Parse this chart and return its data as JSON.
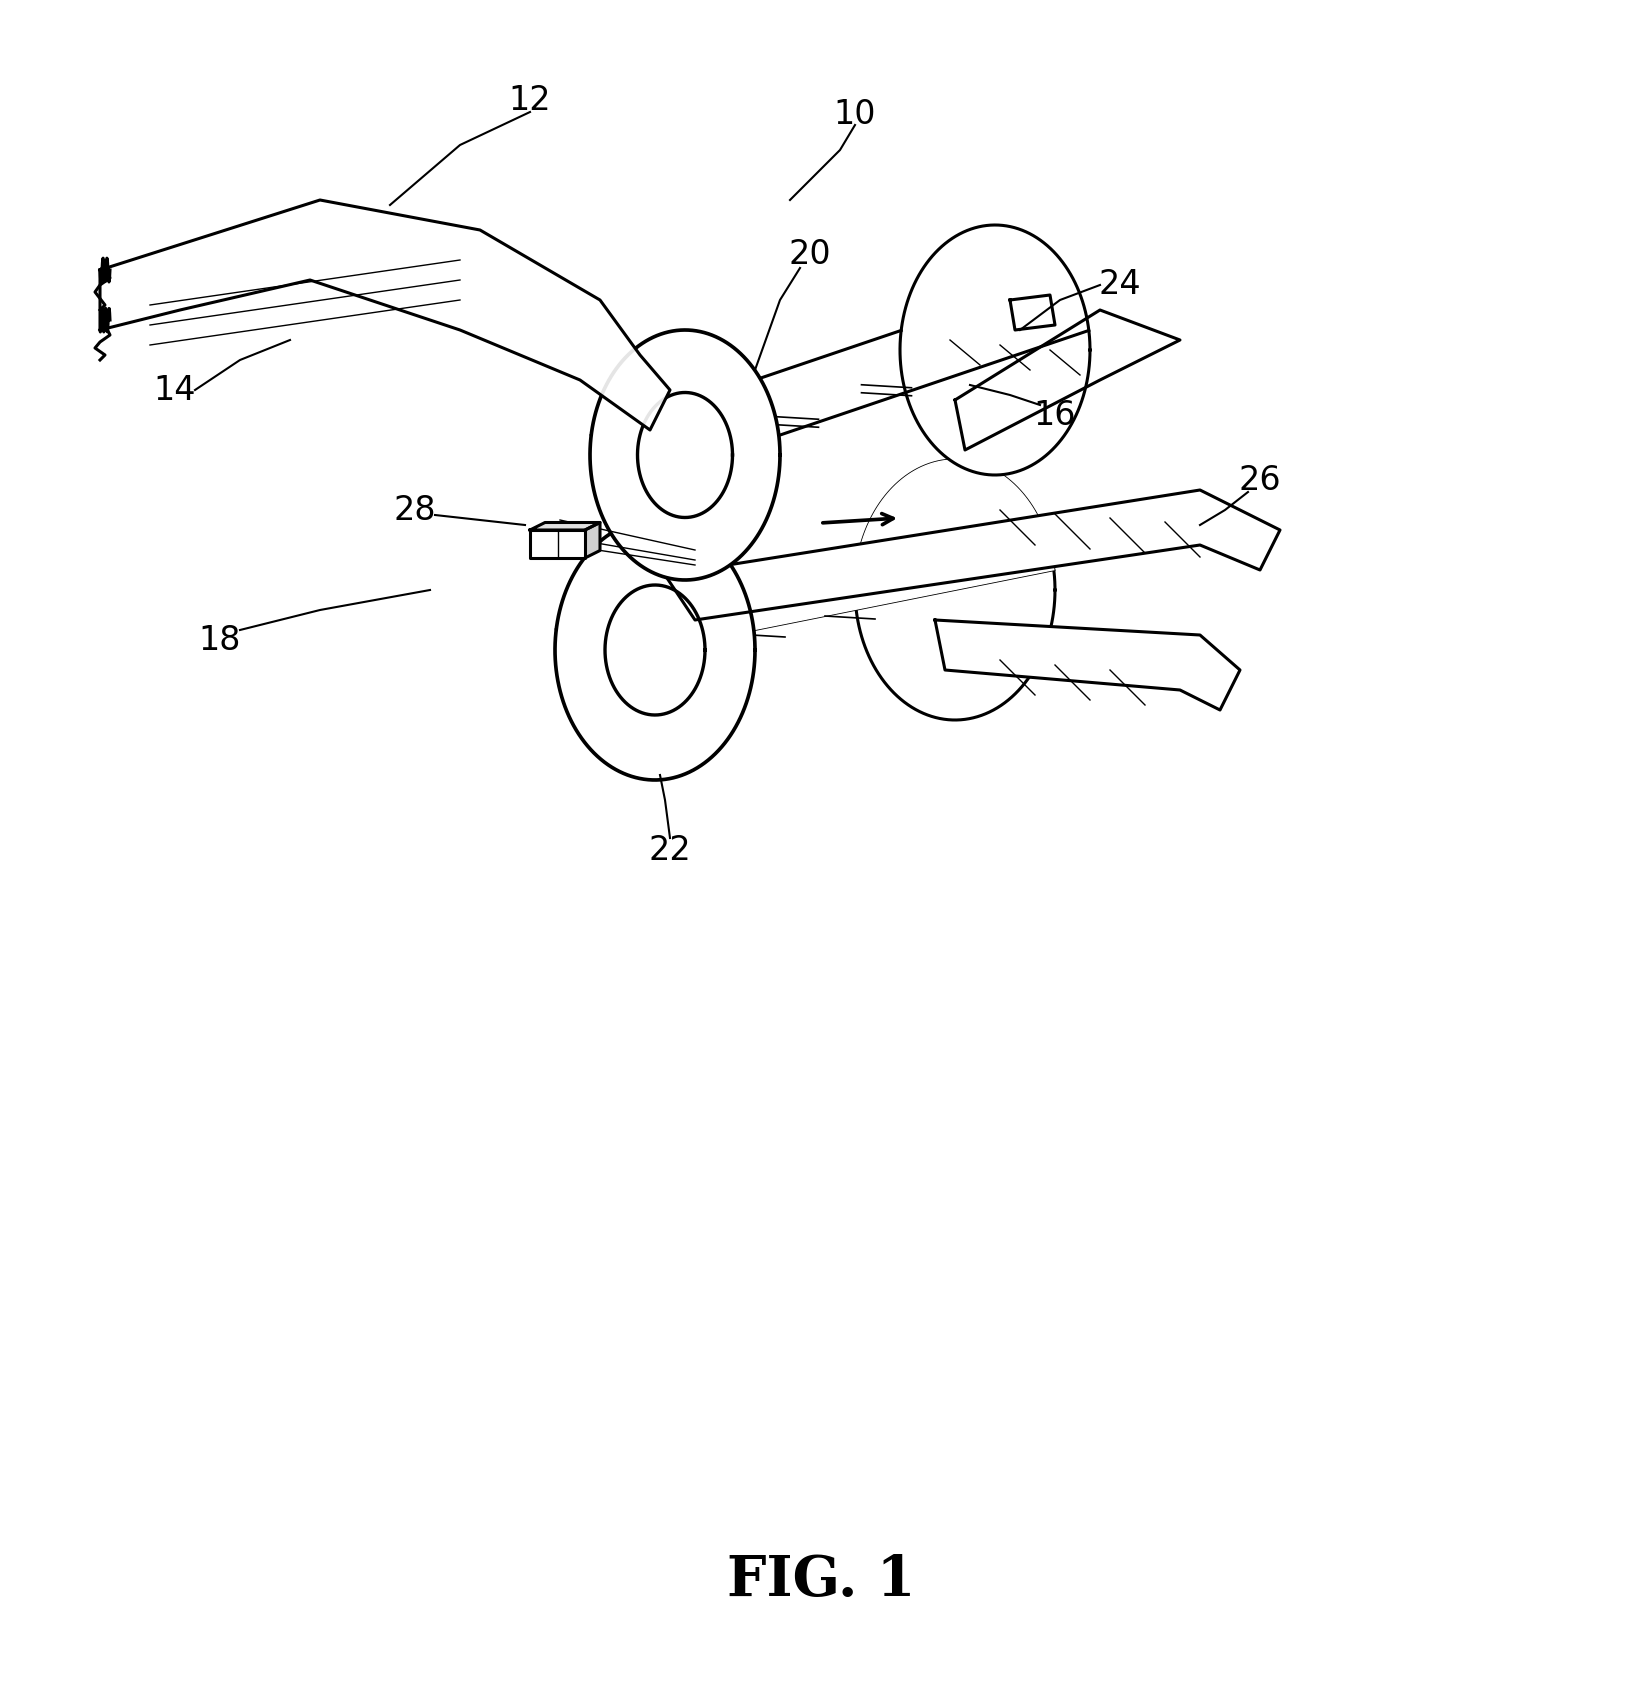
{
  "title": "FIG. 1",
  "title_fontsize": 40,
  "title_fontweight": "bold",
  "bg_color": "#ffffff",
  "line_color": "#000000",
  "label_fontsize": 24,
  "fig_width": 16.43,
  "fig_height": 17.01,
  "dpi": 100
}
